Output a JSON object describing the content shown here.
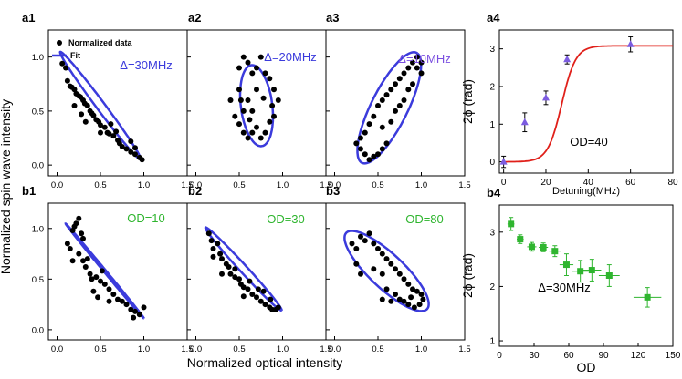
{
  "figure": {
    "ylabel": "Normalized spin wave intensity",
    "xlabel": "Normalized optical intensity"
  },
  "colors": {
    "blue": "#3b3bdc",
    "purple": "#7b4fe0",
    "green": "#2fb52f",
    "red": "#e0201a",
    "black": "#000000",
    "violet_marker": "#7c5ce0"
  },
  "chart_data": [
    {
      "id": "a1",
      "type": "scatter",
      "panel_label": "a1",
      "annotation": "Δ=30MHz",
      "legend": {
        "scatter_label": "Normalized data",
        "fit_label": "Fit"
      },
      "xlim": [
        -0.1,
        1.5
      ],
      "ylim": [
        -0.1,
        1.25
      ],
      "xticks": [
        "0.0",
        "0.5",
        "1.0",
        "1.5"
      ],
      "yticks": [
        "0.0",
        "0.5",
        "1.0"
      ],
      "fit": {
        "type": "ellipse",
        "cx": 0.5,
        "cy": 0.55,
        "a": 0.68,
        "b": 0.045,
        "angle_deg": -47
      },
      "points": [
        [
          0.06,
          0.94
        ],
        [
          0.1,
          0.9
        ],
        [
          0.12,
          0.78
        ],
        [
          0.15,
          0.73
        ],
        [
          0.17,
          0.72
        ],
        [
          0.2,
          0.7
        ],
        [
          0.22,
          0.66
        ],
        [
          0.25,
          0.64
        ],
        [
          0.27,
          0.63
        ],
        [
          0.3,
          0.6
        ],
        [
          0.32,
          0.57
        ],
        [
          0.35,
          0.55
        ],
        [
          0.38,
          0.5
        ],
        [
          0.4,
          0.48
        ],
        [
          0.42,
          0.46
        ],
        [
          0.45,
          0.42
        ],
        [
          0.48,
          0.4
        ],
        [
          0.5,
          0.37
        ],
        [
          0.55,
          0.35
        ],
        [
          0.58,
          0.3
        ],
        [
          0.6,
          0.29
        ],
        [
          0.65,
          0.27
        ],
        [
          0.7,
          0.23
        ],
        [
          0.72,
          0.2
        ],
        [
          0.75,
          0.17
        ],
        [
          0.8,
          0.15
        ],
        [
          0.85,
          0.12
        ],
        [
          0.9,
          0.1
        ],
        [
          0.95,
          0.07
        ],
        [
          0.98,
          0.05
        ],
        [
          0.2,
          0.55
        ],
        [
          0.28,
          0.47
        ],
        [
          0.33,
          0.4
        ],
        [
          0.5,
          0.3
        ],
        [
          0.62,
          0.38
        ],
        [
          0.68,
          0.31
        ],
        [
          0.85,
          0.22
        ],
        [
          0.9,
          0.16
        ]
      ]
    },
    {
      "id": "a2",
      "type": "scatter",
      "panel_label": "a2",
      "annotation": "Δ=20MHz",
      "xlim": [
        -0.1,
        1.5
      ],
      "ylim": [
        -0.1,
        1.25
      ],
      "fit": {
        "type": "ellipse",
        "cx": 0.7,
        "cy": 0.55,
        "a": 0.38,
        "b": 0.18,
        "angle_deg": -80
      },
      "points": [
        [
          0.5,
          0.9
        ],
        [
          0.55,
          1.0
        ],
        [
          0.6,
          0.95
        ],
        [
          0.65,
          0.85
        ],
        [
          0.7,
          0.9
        ],
        [
          0.75,
          1.0
        ],
        [
          0.8,
          0.85
        ],
        [
          0.85,
          0.8
        ],
        [
          0.9,
          0.7
        ],
        [
          0.95,
          0.6
        ],
        [
          0.5,
          0.7
        ],
        [
          0.52,
          0.6
        ],
        [
          0.55,
          0.5
        ],
        [
          0.45,
          0.45
        ],
        [
          0.5,
          0.38
        ],
        [
          0.55,
          0.3
        ],
        [
          0.6,
          0.25
        ],
        [
          0.65,
          0.3
        ],
        [
          0.7,
          0.35
        ],
        [
          0.75,
          0.25
        ],
        [
          0.8,
          0.3
        ],
        [
          0.85,
          0.4
        ],
        [
          0.9,
          0.45
        ],
        [
          0.6,
          0.6
        ],
        [
          0.65,
          0.5
        ],
        [
          0.7,
          0.7
        ],
        [
          0.4,
          0.6
        ],
        [
          0.62,
          0.42
        ],
        [
          0.88,
          0.55
        ],
        [
          0.78,
          0.62
        ]
      ]
    },
    {
      "id": "a3",
      "type": "scatter",
      "panel_label": "a3",
      "annotation": "Δ=10MHz",
      "xlim": [
        -0.1,
        1.5
      ],
      "ylim": [
        -0.1,
        1.25
      ],
      "fit": {
        "type": "ellipse",
        "cx": 0.63,
        "cy": 0.53,
        "a": 0.6,
        "b": 0.2,
        "angle_deg": 57
      },
      "points": [
        [
          0.25,
          0.2
        ],
        [
          0.3,
          0.15
        ],
        [
          0.35,
          0.1
        ],
        [
          0.4,
          0.05
        ],
        [
          0.45,
          0.08
        ],
        [
          0.5,
          0.1
        ],
        [
          0.55,
          0.15
        ],
        [
          0.6,
          0.2
        ],
        [
          0.35,
          0.3
        ],
        [
          0.4,
          0.38
        ],
        [
          0.45,
          0.45
        ],
        [
          0.5,
          0.55
        ],
        [
          0.55,
          0.6
        ],
        [
          0.6,
          0.65
        ],
        [
          0.65,
          0.7
        ],
        [
          0.7,
          0.75
        ],
        [
          0.75,
          0.8
        ],
        [
          0.8,
          0.85
        ],
        [
          0.85,
          0.9
        ],
        [
          0.9,
          0.95
        ],
        [
          0.95,
          1.0
        ],
        [
          1.0,
          0.95
        ],
        [
          0.85,
          0.7
        ],
        [
          0.8,
          0.6
        ],
        [
          0.7,
          0.5
        ],
        [
          0.65,
          0.4
        ],
        [
          0.9,
          0.75
        ],
        [
          1.0,
          0.85
        ],
        [
          0.55,
          0.35
        ],
        [
          0.75,
          0.55
        ],
        [
          0.3,
          0.25
        ],
        [
          0.95,
          0.9
        ]
      ]
    },
    {
      "id": "a4",
      "type": "scatter",
      "panel_label": "a4",
      "annotation": "OD=40",
      "xlabel": "Detuning(MHz)",
      "ylabel": "2ϕ (rad)",
      "xlim": [
        -2,
        80
      ],
      "ylim": [
        -0.3,
        3.5
      ],
      "xticks": [
        "0",
        "20",
        "40",
        "60",
        "80"
      ],
      "yticks": [
        "0",
        "1",
        "2",
        "3"
      ],
      "theory_curve": {
        "type": "sigmoid",
        "low": 0.0,
        "high": 3.08,
        "center": 27.5,
        "width": 3.3
      },
      "points": [
        {
          "x": 0,
          "y": 0.0,
          "err": 0.15
        },
        {
          "x": 10,
          "y": 1.05,
          "err": 0.25
        },
        {
          "x": 20,
          "y": 1.7,
          "err": 0.18
        },
        {
          "x": 30,
          "y": 2.72,
          "err": 0.12
        },
        {
          "x": 60,
          "y": 3.12,
          "err": 0.2
        }
      ]
    },
    {
      "id": "b1",
      "type": "scatter",
      "panel_label": "b1",
      "annotation": "OD=10",
      "xlim": [
        -0.1,
        1.5
      ],
      "ylim": [
        -0.1,
        1.25
      ],
      "xticks": [
        "0.0",
        "0.5",
        "1.0",
        "1.5"
      ],
      "yticks": [
        "0.0",
        "0.5",
        "1.0"
      ],
      "fit": {
        "type": "ellipse",
        "cx": 0.55,
        "cy": 0.58,
        "a": 0.65,
        "b": 0.012,
        "angle_deg": -46
      },
      "points": [
        [
          0.12,
          0.85
        ],
        [
          0.15,
          0.8
        ],
        [
          0.18,
          0.98
        ],
        [
          0.2,
          1.02
        ],
        [
          0.22,
          1.05
        ],
        [
          0.25,
          1.1
        ],
        [
          0.28,
          0.95
        ],
        [
          0.3,
          0.9
        ],
        [
          0.25,
          0.75
        ],
        [
          0.3,
          0.68
        ],
        [
          0.33,
          0.62
        ],
        [
          0.35,
          0.7
        ],
        [
          0.38,
          0.55
        ],
        [
          0.4,
          0.5
        ],
        [
          0.45,
          0.52
        ],
        [
          0.5,
          0.48
        ],
        [
          0.55,
          0.45
        ],
        [
          0.6,
          0.4
        ],
        [
          0.65,
          0.35
        ],
        [
          0.7,
          0.3
        ],
        [
          0.75,
          0.28
        ],
        [
          0.8,
          0.25
        ],
        [
          0.85,
          0.2
        ],
        [
          0.9,
          0.18
        ],
        [
          0.95,
          0.15
        ],
        [
          1.0,
          0.22
        ],
        [
          0.42,
          0.38
        ],
        [
          0.52,
          0.58
        ],
        [
          0.18,
          0.68
        ],
        [
          0.47,
          0.32
        ],
        [
          0.6,
          0.28
        ],
        [
          0.88,
          0.12
        ]
      ]
    },
    {
      "id": "b2",
      "type": "scatter",
      "panel_label": "b2",
      "annotation": "OD=30",
      "xlim": [
        -0.1,
        1.5
      ],
      "ylim": [
        -0.1,
        1.25
      ],
      "fit": {
        "type": "ellipse",
        "cx": 0.55,
        "cy": 0.6,
        "a": 0.6,
        "b": 0.04,
        "angle_deg": -43
      },
      "points": [
        [
          0.15,
          0.95
        ],
        [
          0.18,
          0.88
        ],
        [
          0.2,
          0.8
        ],
        [
          0.25,
          0.85
        ],
        [
          0.28,
          0.75
        ],
        [
          0.3,
          0.7
        ],
        [
          0.35,
          0.65
        ],
        [
          0.38,
          0.62
        ],
        [
          0.4,
          0.55
        ],
        [
          0.45,
          0.52
        ],
        [
          0.5,
          0.5
        ],
        [
          0.52,
          0.45
        ],
        [
          0.55,
          0.42
        ],
        [
          0.6,
          0.4
        ],
        [
          0.65,
          0.35
        ],
        [
          0.7,
          0.32
        ],
        [
          0.75,
          0.28
        ],
        [
          0.8,
          0.25
        ],
        [
          0.85,
          0.22
        ],
        [
          0.88,
          0.2
        ],
        [
          0.92,
          0.2
        ],
        [
          0.95,
          0.22
        ],
        [
          0.3,
          0.55
        ],
        [
          0.45,
          0.6
        ],
        [
          0.62,
          0.48
        ],
        [
          0.78,
          0.38
        ],
        [
          0.2,
          0.72
        ],
        [
          0.55,
          0.33
        ],
        [
          0.72,
          0.4
        ],
        [
          0.86,
          0.3
        ]
      ]
    },
    {
      "id": "b3",
      "type": "scatter",
      "panel_label": "b3",
      "annotation": "OD=80",
      "xlim": [
        -0.1,
        1.5
      ],
      "ylim": [
        -0.1,
        1.25
      ],
      "fit": {
        "type": "ellipse",
        "cx": 0.6,
        "cy": 0.58,
        "a": 0.6,
        "b": 0.18,
        "angle_deg": -38
      },
      "points": [
        [
          0.2,
          0.85
        ],
        [
          0.25,
          0.8
        ],
        [
          0.3,
          0.92
        ],
        [
          0.35,
          0.88
        ],
        [
          0.4,
          0.95
        ],
        [
          0.45,
          0.85
        ],
        [
          0.5,
          0.8
        ],
        [
          0.55,
          0.75
        ],
        [
          0.6,
          0.7
        ],
        [
          0.65,
          0.65
        ],
        [
          0.7,
          0.6
        ],
        [
          0.75,
          0.55
        ],
        [
          0.8,
          0.5
        ],
        [
          0.85,
          0.45
        ],
        [
          0.9,
          0.4
        ],
        [
          0.95,
          0.38
        ],
        [
          1.0,
          0.35
        ],
        [
          1.02,
          0.3
        ],
        [
          0.98,
          0.25
        ],
        [
          0.92,
          0.22
        ],
        [
          0.85,
          0.25
        ],
        [
          0.8,
          0.28
        ],
        [
          0.75,
          0.3
        ],
        [
          0.7,
          0.35
        ],
        [
          0.65,
          0.28
        ],
        [
          0.55,
          0.3
        ],
        [
          0.3,
          0.55
        ],
        [
          0.25,
          0.65
        ],
        [
          0.55,
          0.55
        ],
        [
          0.45,
          0.6
        ],
        [
          0.88,
          0.32
        ],
        [
          0.6,
          0.4
        ]
      ]
    },
    {
      "id": "b4",
      "type": "scatter",
      "panel_label": "b4",
      "annotation": "Δ=30MHz",
      "xlabel": "OD",
      "ylabel": "2ϕ (rad)",
      "xlim": [
        0,
        150
      ],
      "ylim": [
        0.9,
        3.5
      ],
      "xticks": [
        "0",
        "30",
        "60",
        "90",
        "120",
        "150"
      ],
      "yticks": [
        "1",
        "2",
        "3"
      ],
      "points": [
        {
          "x": 10,
          "y": 3.15,
          "xerr": 3,
          "yerr": 0.12
        },
        {
          "x": 18,
          "y": 2.87,
          "xerr": 3,
          "yerr": 0.08
        },
        {
          "x": 28,
          "y": 2.73,
          "xerr": 4,
          "yerr": 0.08
        },
        {
          "x": 38,
          "y": 2.72,
          "xerr": 4,
          "yerr": 0.08
        },
        {
          "x": 48,
          "y": 2.65,
          "xerr": 5,
          "yerr": 0.1
        },
        {
          "x": 58,
          "y": 2.4,
          "xerr": 6,
          "yerr": 0.2
        },
        {
          "x": 70,
          "y": 2.28,
          "xerr": 7,
          "yerr": 0.2
        },
        {
          "x": 80,
          "y": 2.3,
          "xerr": 8,
          "yerr": 0.2
        },
        {
          "x": 95,
          "y": 2.2,
          "xerr": 9,
          "yerr": 0.2
        },
        {
          "x": 128,
          "y": 1.8,
          "xerr": 12,
          "yerr": 0.18
        }
      ]
    }
  ]
}
